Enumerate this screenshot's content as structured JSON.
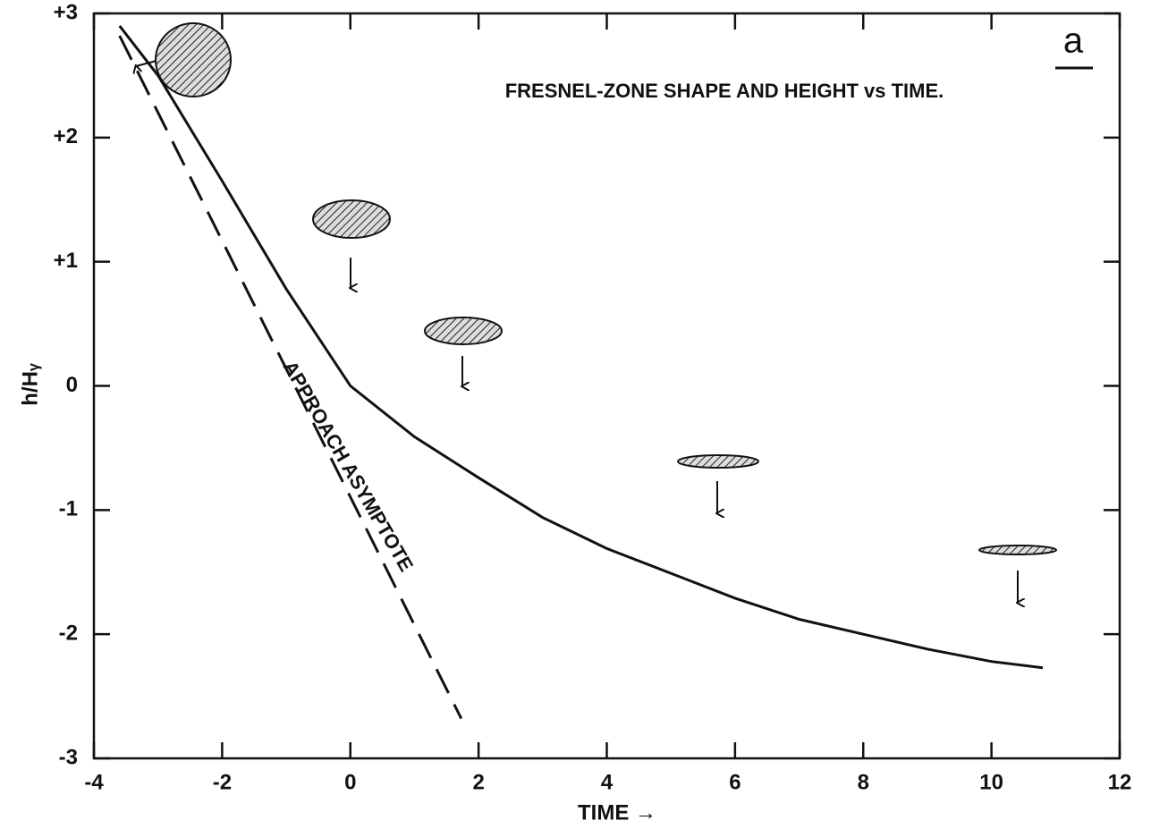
{
  "chart_data": {
    "type": "line",
    "title": "FRESNEL-ZONE SHAPE AND HEIGHT vs TIME.",
    "panel_label": "a",
    "xlabel": "TIME →",
    "ylabel": "h/Hᵧ",
    "annotation": "APPROACH ASYMPTOTE",
    "xlim": [
      -4,
      12
    ],
    "ylim": [
      -3,
      3
    ],
    "xticks": [
      -4,
      -2,
      0,
      2,
      4,
      6,
      8,
      10,
      12
    ],
    "yticks": [
      {
        "value": 3,
        "label": "+3"
      },
      {
        "value": 2,
        "label": "+2"
      },
      {
        "value": 1,
        "label": "+1"
      },
      0,
      -1,
      -2,
      -3
    ],
    "series": [
      {
        "color": "#111111",
        "dashed": false,
        "x": [
          -3.6,
          -3,
          -2,
          -1,
          0,
          1,
          2,
          3,
          4,
          5,
          6,
          7,
          8,
          9,
          10,
          10.8
        ],
        "values": [
          2.9,
          2.5,
          1.65,
          0.78,
          0.0,
          -0.41,
          -0.74,
          -1.06,
          -1.31,
          -1.51,
          -1.71,
          -1.88,
          -2.0,
          -2.12,
          -2.22,
          -2.27
        ]
      },
      {
        "color": "#111111",
        "dashed": true,
        "x": [
          -3.6,
          1.73
        ],
        "values": [
          2.82,
          -2.68
        ]
      }
    ]
  }
}
